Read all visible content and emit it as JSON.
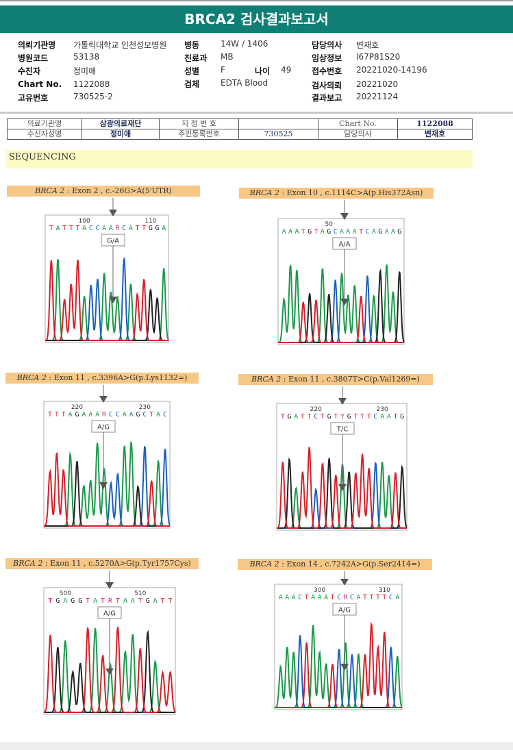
{
  "header": {
    "title": "BRCA2 검사결과보고서"
  },
  "patient_info": {
    "col1": [
      {
        "label": "의뢰기관명",
        "value": "가톨릭대학교 인천성모병원"
      },
      {
        "label": "병원코드",
        "value": "53138"
      },
      {
        "label": "수진자",
        "value": "정미애"
      },
      {
        "label": "Chart No.",
        "value": "1122088"
      },
      {
        "label": "고유번호",
        "value": "730525-2"
      }
    ],
    "col2": [
      {
        "label": "병동",
        "value": "14W / 1406"
      },
      {
        "label": "진료과",
        "value": "MB"
      },
      {
        "label": "성별",
        "value": "F"
      },
      {
        "label": "검체",
        "value": "EDTA Blood"
      }
    ],
    "age": {
      "label": "나이",
      "value": "49"
    },
    "col3": [
      {
        "label": "담당의사",
        "value": "변재호"
      },
      {
        "label": "임상정보",
        "value": "I67P81S20"
      },
      {
        "label": "접수번호",
        "value": "20221020-14196"
      },
      {
        "label": "검사의뢰",
        "value": "20221020"
      },
      {
        "label": "결과보고",
        "value": "20221124"
      }
    ]
  },
  "scan_table": {
    "row1": [
      "의료기관명",
      "삼광의료재단",
      "지 정 번 호",
      "",
      "Chart No.",
      "1122088"
    ],
    "row2": [
      "수신자성명",
      "정미애",
      "주민등록번호",
      "730525",
      "담당의사",
      "변재호"
    ]
  },
  "section": {
    "title": "SEQUENCING"
  },
  "panels": [
    {
      "gene": "BRCA 2",
      "desc": " : Exon 2 , c.-26G>A(5'UTR)",
      "genotype": "G/A",
      "ticks": [
        {
          "pos": 5,
          "label": "100"
        },
        {
          "pos": 15,
          "label": "110"
        }
      ],
      "sequence": "TATTTACCAARCATTGGA"
    },
    {
      "gene": "BRCA 2",
      "desc": " : Exon 10 , c.1114C>A(p.His372Asn)",
      "genotype": "A/A",
      "ticks": [
        {
          "pos": 7,
          "label": "50"
        }
      ],
      "sequence": "AAATGTAGCAAATCAGAAG"
    },
    {
      "gene": "BRCA 2",
      "desc": " : Exon 11 , c.3396A>G(p.Lys1132=)",
      "genotype": "A/G",
      "ticks": [
        {
          "pos": 4,
          "label": "220"
        },
        {
          "pos": 14,
          "label": "230"
        }
      ],
      "sequence": "TTTAGAAARCCAAGCTAC"
    },
    {
      "gene": "BRCA 2",
      "desc": " : Exon 11 , c.3807T>C(p.Val1269=)",
      "genotype": "T/C",
      "ticks": [
        {
          "pos": 5,
          "label": "220"
        },
        {
          "pos": 15,
          "label": "230"
        }
      ],
      "sequence": "TGATTCTGTYGTTTCAATG"
    },
    {
      "gene": "BRCA 2",
      "desc": " : Exon 11 , c.5270A>G(p.Tyr1757Cys)",
      "genotype": "A/G",
      "ticks": [
        {
          "pos": 2,
          "label": "500"
        },
        {
          "pos": 12,
          "label": "510"
        }
      ],
      "sequence": "TGAGGTATRTAATGATT"
    },
    {
      "gene": "BRCA 2",
      "desc": " : Exon 14 , c.7242A>G(p.Ser2414=)",
      "genotype": "A/G",
      "ticks": [
        {
          "pos": 6,
          "label": "300"
        },
        {
          "pos": 16,
          "label": "310"
        }
      ],
      "sequence": "AAACTAAATCRCATTTTCA"
    }
  ],
  "base_colors": {
    "A": "#1a9a4a",
    "C": "#1a5fc0",
    "G": "#222222",
    "T": "#d81e28",
    "R": "#c0307a",
    "Y": "#c0307a"
  }
}
